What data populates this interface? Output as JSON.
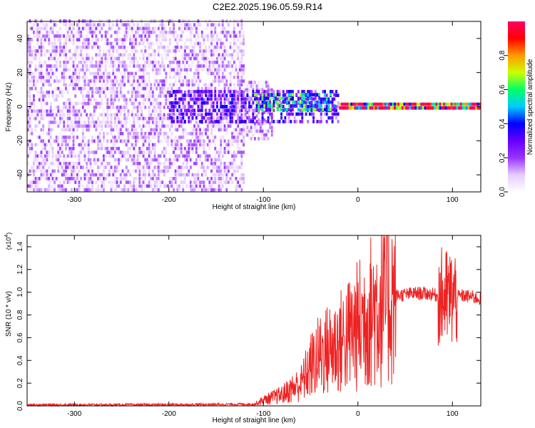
{
  "title": "C2E2.2025.196.05.59.R14",
  "chart_data": [
    {
      "type": "heatmap",
      "xlabel": "Height of straight line (km)",
      "ylabel": "Frequency (Hz)",
      "xlim": [
        -350,
        130
      ],
      "ylim": [
        -50,
        50
      ],
      "x_ticks": [
        -300,
        -200,
        -100,
        0,
        100
      ],
      "y_ticks": [
        -40,
        -20,
        0,
        20,
        40
      ],
      "colorbar": {
        "label": "Normalized spectral amplitude",
        "range": [
          0,
          1
        ],
        "ticks": [
          "0.0",
          "0.2",
          "0.4",
          "0.6",
          "0.8"
        ],
        "colors": [
          "#ffffff",
          "#e6ccff",
          "#9933ff",
          "#6600ff",
          "#0000ff",
          "#00ccff",
          "#00ff66",
          "#ccff00",
          "#ff9900",
          "#ff0000",
          "#ff0066"
        ]
      },
      "regions": [
        {
          "x_range": [
            -350,
            -120
          ],
          "freq_range": [
            -50,
            50
          ],
          "level": 0.12
        },
        {
          "x_range": [
            -120,
            -90
          ],
          "freq_range": [
            -20,
            15
          ],
          "level": 0.06
        },
        {
          "x_range": [
            -200,
            -20
          ],
          "freq_range": [
            -10,
            8
          ],
          "level": 0.3
        },
        {
          "x_range": [
            -110,
            -25
          ],
          "freq_range": [
            -3,
            6
          ],
          "level": 0.5
        },
        {
          "x_range": [
            -20,
            130
          ],
          "freq_range": [
            -2,
            2
          ],
          "level": 0.95
        }
      ]
    },
    {
      "type": "line",
      "xlabel": "Height of straight line (km)",
      "ylabel": "SNR (10 * v/v)",
      "y_multiplier": "(x10",
      "y_multiplier_exp": "4",
      "y_multiplier_close": ")",
      "xlim": [
        -350,
        130
      ],
      "ylim": [
        0,
        1.5
      ],
      "x_ticks": [
        -300,
        -200,
        -100,
        0,
        100
      ],
      "y_ticks": [
        "0.0",
        "0.2",
        "0.4",
        "0.6",
        "0.8",
        "1.0",
        "1.2",
        "1.4"
      ],
      "color": "#ee2222",
      "envelope": [
        [
          -350,
          0.01
        ],
        [
          -250,
          0.01
        ],
        [
          -180,
          0.012
        ],
        [
          -110,
          0.015
        ],
        [
          -100,
          0.05
        ],
        [
          -80,
          0.1
        ],
        [
          -60,
          0.2
        ],
        [
          -50,
          0.35
        ],
        [
          -40,
          0.45
        ],
        [
          -30,
          0.5
        ],
        [
          -20,
          0.55
        ],
        [
          -10,
          0.62
        ],
        [
          0,
          0.7
        ],
        [
          10,
          0.8
        ],
        [
          20,
          0.88
        ],
        [
          30,
          0.93
        ],
        [
          40,
          0.97
        ],
        [
          50,
          0.98
        ],
        [
          60,
          0.99
        ],
        [
          70,
          0.99
        ],
        [
          80,
          0.98
        ],
        [
          90,
          0.95
        ],
        [
          100,
          0.95
        ],
        [
          110,
          0.97
        ],
        [
          120,
          0.96
        ],
        [
          130,
          0.94
        ]
      ]
    }
  ]
}
